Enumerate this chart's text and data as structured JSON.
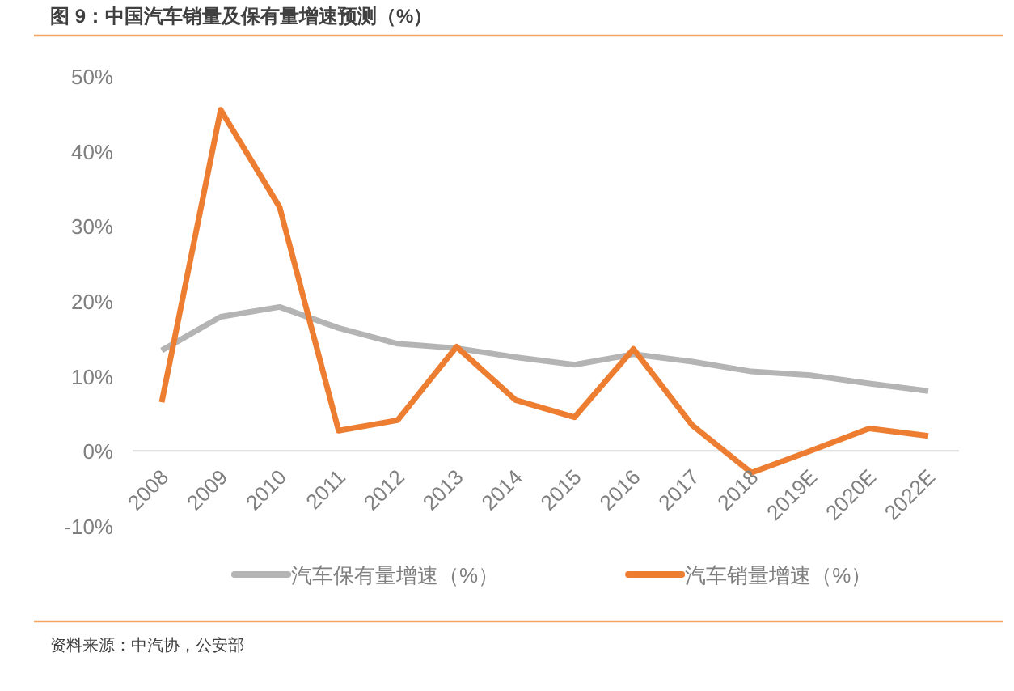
{
  "chart_data": {
    "type": "line",
    "title": "图 9：中国汽车销量及保有量增速预测（%）",
    "categories": [
      "2008",
      "2009",
      "2010",
      "2011",
      "2012",
      "2013",
      "2014",
      "2015",
      "2016",
      "2017",
      "2018",
      "2019E",
      "2020E",
      "2022E"
    ],
    "series": [
      {
        "name": "汽车保有量增速（%）",
        "color": "#b4b4b4",
        "values": [
          13.4,
          17.9,
          19.2,
          16.4,
          14.3,
          13.7,
          12.5,
          11.5,
          12.9,
          11.9,
          10.6,
          10.1,
          9.0,
          8.0
        ]
      },
      {
        "name": "汽车销量增速（%）",
        "color": "#ed7d31",
        "values": [
          6.5,
          45.5,
          32.5,
          2.7,
          4.1,
          13.9,
          6.8,
          4.5,
          13.6,
          3.4,
          -2.9,
          0,
          3.0,
          2.0
        ]
      }
    ],
    "ylim": [
      -10,
      50
    ],
    "yticks": [
      {
        "value": -10,
        "label": "-10%"
      },
      {
        "value": 0,
        "label": "0%"
      },
      {
        "value": 10,
        "label": "10%"
      },
      {
        "value": 20,
        "label": "20%"
      },
      {
        "value": 30,
        "label": "30%"
      },
      {
        "value": 40,
        "label": "40%"
      },
      {
        "value": 50,
        "label": "50%"
      }
    ],
    "grid": false,
    "legend": "bottom",
    "marker": "none",
    "line_style": "solid",
    "annotations": [
      "资料来源：中汽协，公安部"
    ]
  }
}
